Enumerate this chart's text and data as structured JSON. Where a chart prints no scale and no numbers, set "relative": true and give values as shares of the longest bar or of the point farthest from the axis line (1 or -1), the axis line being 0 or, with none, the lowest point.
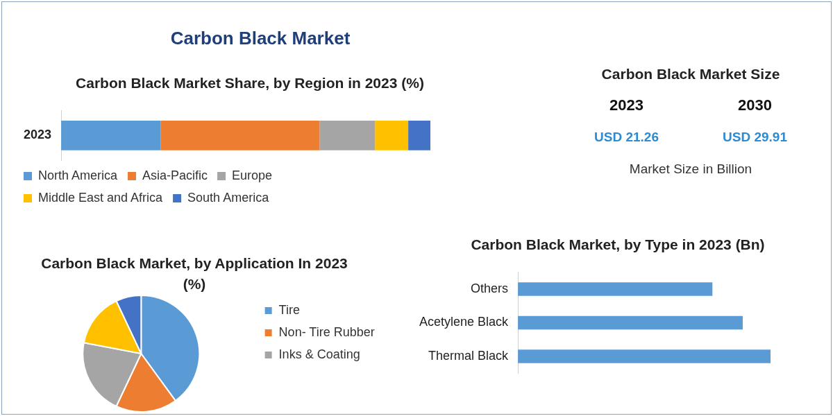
{
  "chart_data": [
    {
      "type": "other",
      "title": "Carbon Black Market",
      "subtitle": "Carbon Black Market Size",
      "annotations": [
        "2023",
        "2030",
        "USD 21.26",
        "USD 29.91",
        "Market Size in Billion"
      ]
    },
    {
      "type": "bar",
      "title": "Carbon Black Market Share, by Region in 2023 (%)",
      "orientation": "horizontal",
      "stacked": true,
      "relative": true,
      "legend": "bottom",
      "categories": [
        "2023"
      ],
      "series": [
        {
          "name": "North America",
          "color": "#5b9bd5",
          "values": [
            0.27
          ]
        },
        {
          "name": "Asia-Pacific",
          "color": "#ed7d31",
          "values": [
            0.43
          ]
        },
        {
          "name": "Europe",
          "color": "#a5a5a5",
          "values": [
            0.15
          ]
        },
        {
          "name": "Middle East and Africa",
          "color": "#ffc000",
          "values": [
            0.09
          ]
        },
        {
          "name": "South America",
          "color": "#4472c4",
          "values": [
            0.06
          ]
        }
      ]
    },
    {
      "type": "pie",
      "title": "Carbon Black Market, by Application In 2023 (%)",
      "legend": "right",
      "categories": [
        "Tire",
        "Non- Tire Rubber",
        "Inks & Coating",
        null,
        null
      ],
      "values": [
        40,
        17,
        21,
        15,
        7
      ],
      "colors": [
        "#5b9bd5",
        "#ed7d31",
        "#a5a5a5",
        "#ffc000",
        "#4472c4"
      ]
    },
    {
      "type": "bar",
      "title": "Carbon Black Market, by Type in 2023 (Bn)",
      "orientation": "horizontal",
      "relative": true,
      "categories": [
        "Others",
        "Acetylene Black",
        "Thermal Black"
      ],
      "values": [
        0.77,
        0.89,
        1
      ],
      "color": "#5b9bd5"
    }
  ]
}
